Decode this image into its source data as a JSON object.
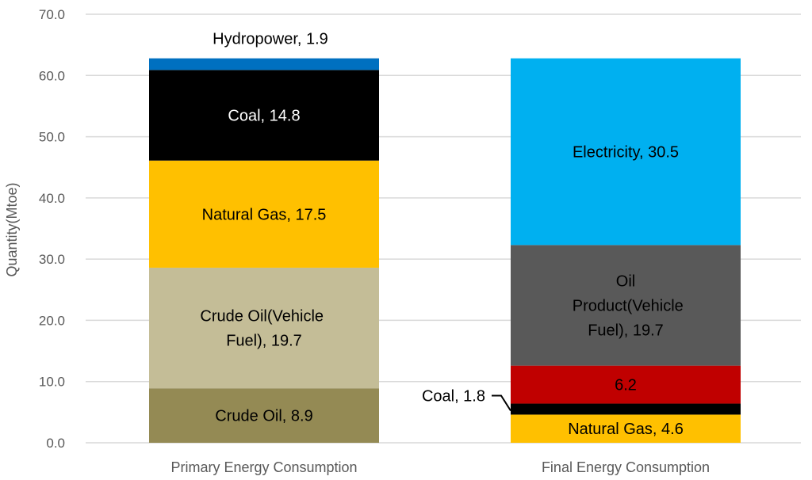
{
  "chart_data": {
    "type": "bar",
    "stacked": true,
    "title": "",
    "xlabel": "",
    "ylabel": "Quantity(Mtoe)",
    "ylim": [
      0,
      70
    ],
    "yticks": [
      "0.0",
      "10.0",
      "20.0",
      "30.0",
      "40.0",
      "50.0",
      "60.0",
      "70.0"
    ],
    "grid": true,
    "categories": [
      "Primary Energy Consumption",
      "Final Energy Consumption"
    ],
    "stacks": [
      {
        "category": "Primary Energy Consumption",
        "segments": [
          {
            "name": "Crude Oil",
            "value": 8.9,
            "label": "Crude Oil, 8.9",
            "color": "#948A54",
            "text_color": "#000000"
          },
          {
            "name": "Crude Oil(Vehicle Fuel)",
            "value": 19.7,
            "label": "Crude Oil(Vehicle Fuel), 19.7",
            "color": "#C4BD97",
            "text_color": "#000000"
          },
          {
            "name": "Natural Gas",
            "value": 17.5,
            "label": "Natural Gas, 17.5",
            "color": "#FFC000",
            "text_color": "#000000"
          },
          {
            "name": "Coal",
            "value": 14.8,
            "label": "Coal, 14.8",
            "color": "#000000",
            "text_color": "#FFFFFF"
          },
          {
            "name": "Hydropower",
            "value": 1.9,
            "label": "Hydropower, 1.9",
            "color": "#0070C0",
            "text_color": "#000000"
          }
        ]
      },
      {
        "category": "Final Energy Consumption",
        "segments": [
          {
            "name": "Natural Gas",
            "value": 4.6,
            "label": "Natural Gas, 4.6",
            "color": "#FFC000",
            "text_color": "#000000"
          },
          {
            "name": "Coal",
            "value": 1.8,
            "label": "Coal, 1.8",
            "color": "#000000",
            "text_color": "#000000"
          },
          {
            "name": "",
            "value": 6.2,
            "label": "6.2",
            "color": "#C00000",
            "text_color": "#000000"
          },
          {
            "name": "Oil Product(Vehicle Fuel)",
            "value": 19.7,
            "label": "Oil Product(Vehicle Fuel), 19.7",
            "color": "#595959",
            "text_color": "#000000"
          },
          {
            "name": "Electricity",
            "value": 30.5,
            "label": "Electricity, 30.5",
            "color": "#00B0F0",
            "text_color": "#000000"
          }
        ]
      }
    ]
  }
}
